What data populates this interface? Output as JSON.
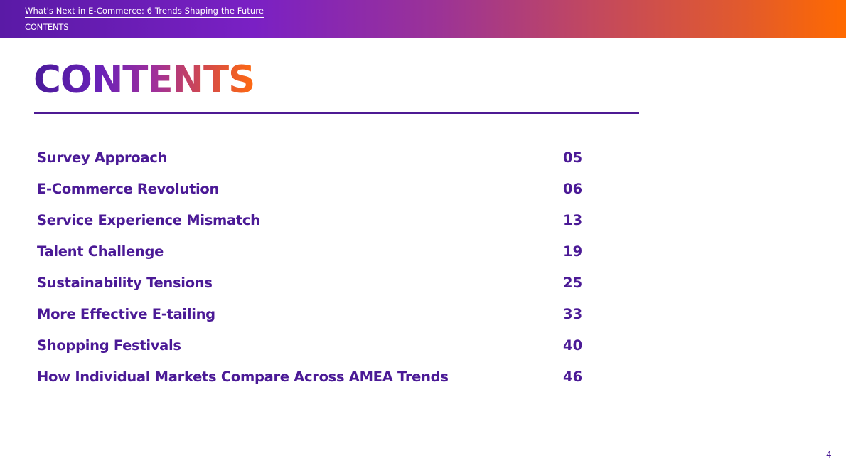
{
  "header": {
    "document_title": "What's Next in E-Commerce: 6 Trends Shaping the Future",
    "section": "CONTENTS",
    "gradient_colors": [
      "#5a1aa6",
      "#9c3396",
      "#ff6a00"
    ]
  },
  "page_title": "CONTENTS",
  "accent_color": "#4b1a96",
  "toc": {
    "items": [
      {
        "label": "Survey Approach",
        "page": "05"
      },
      {
        "label": "E-Commerce Revolution",
        "page": "06"
      },
      {
        "label": "Service Experience Mismatch",
        "page": "13"
      },
      {
        "label": "Talent Challenge",
        "page": "19"
      },
      {
        "label": "Sustainability Tensions",
        "page": "25"
      },
      {
        "label": "More Effective E-tailing",
        "page": "33"
      },
      {
        "label": "Shopping Festivals",
        "page": "40"
      },
      {
        "label": "How Individual Markets Compare Across AMEA Trends",
        "page": "46"
      }
    ]
  },
  "footer": {
    "page_number": "4"
  }
}
